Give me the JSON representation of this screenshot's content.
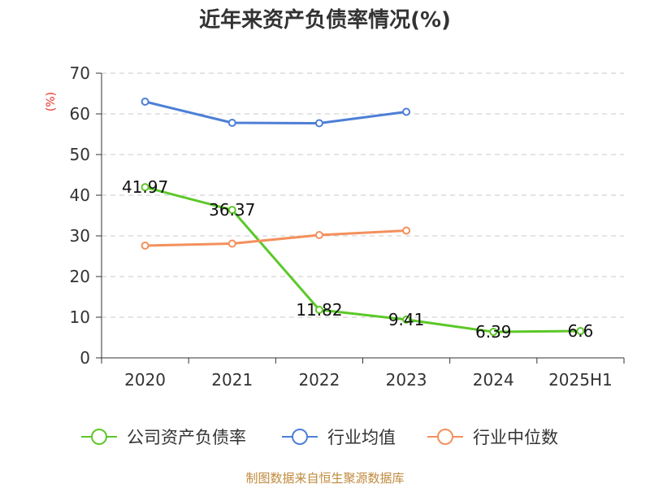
{
  "chart_data": {
    "type": "line",
    "title": "近年来资产负债率情况(%)",
    "ylabel": "(%)",
    "categories": [
      "2020",
      "2021",
      "2022",
      "2023",
      "2024",
      "2025H1"
    ],
    "ylim": [
      0,
      70
    ],
    "yticks": [
      0,
      10,
      20,
      30,
      40,
      50,
      60,
      70
    ],
    "grid": true,
    "legend_position": "bottom",
    "series": [
      {
        "name": "公司资产负债率",
        "color": "#5cc829",
        "values": [
          41.97,
          36.37,
          11.82,
          9.41,
          6.39,
          6.6
        ],
        "labels": [
          "41.97",
          "36.37",
          "11.82",
          "9.41",
          "6.39",
          "6.6"
        ]
      },
      {
        "name": "行业均值",
        "color": "#4d7fd6",
        "values": [
          63.0,
          57.8,
          57.7,
          60.5,
          null,
          null
        ]
      },
      {
        "name": "行业中位数",
        "color": "#f4905c",
        "values": [
          27.6,
          28.1,
          30.2,
          31.3,
          null,
          null
        ]
      }
    ],
    "source": "制图数据来自恒生聚源数据库"
  }
}
